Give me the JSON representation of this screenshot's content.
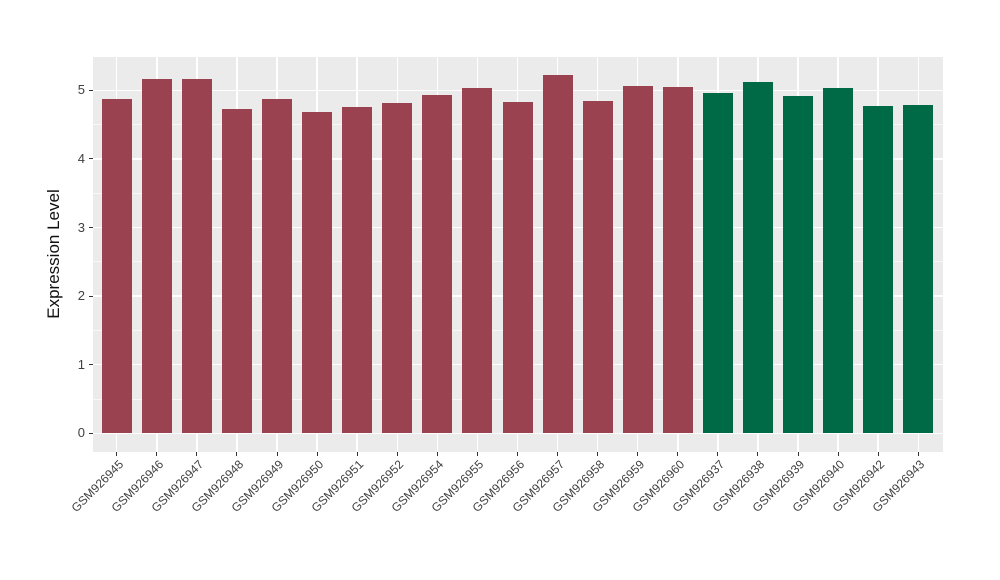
{
  "figure": {
    "background_color": "#FFFFFF",
    "panel_background_color": "#EBEBEB",
    "grid_major_color": "#FFFFFF",
    "grid_minor_color": "#F7F7F7",
    "axis_text_color": "#404040",
    "tick_mark_color": "#333333"
  },
  "chart_data": {
    "type": "bar",
    "title": "",
    "xlabel": "",
    "ylabel": "Expression Level",
    "ylim": [
      0,
      5.49
    ],
    "y_ticks": [
      0,
      1,
      2,
      3,
      4,
      5
    ],
    "y_minor_ticks": [
      0.5,
      1.5,
      2.5,
      3.5,
      4.5,
      5.5
    ],
    "grid": "on",
    "legend_position": "none",
    "x_label_rotation_deg": 45,
    "bar_color_maroon": "#9B4251",
    "bar_color_green": "#006A47",
    "categories": [
      "GSM926945",
      "GSM926946",
      "GSM926947",
      "GSM926948",
      "GSM926949",
      "GSM926950",
      "GSM926951",
      "GSM926952",
      "GSM926954",
      "GSM926955",
      "GSM926956",
      "GSM926957",
      "GSM926958",
      "GSM926959",
      "GSM926960",
      "GSM926937",
      "GSM926938",
      "GSM926939",
      "GSM926940",
      "GSM926942",
      "GSM926943"
    ],
    "values": [
      4.87,
      5.17,
      5.16,
      4.73,
      4.87,
      4.69,
      4.76,
      4.81,
      4.93,
      5.03,
      4.83,
      5.23,
      4.85,
      5.06,
      5.05,
      4.96,
      5.12,
      4.92,
      5.04,
      4.77,
      4.79
    ],
    "bar_colors": [
      "#9B4251",
      "#9B4251",
      "#9B4251",
      "#9B4251",
      "#9B4251",
      "#9B4251",
      "#9B4251",
      "#9B4251",
      "#9B4251",
      "#9B4251",
      "#9B4251",
      "#9B4251",
      "#9B4251",
      "#9B4251",
      "#9B4251",
      "#006A47",
      "#006A47",
      "#006A47",
      "#006A47",
      "#006A47",
      "#006A47"
    ]
  }
}
